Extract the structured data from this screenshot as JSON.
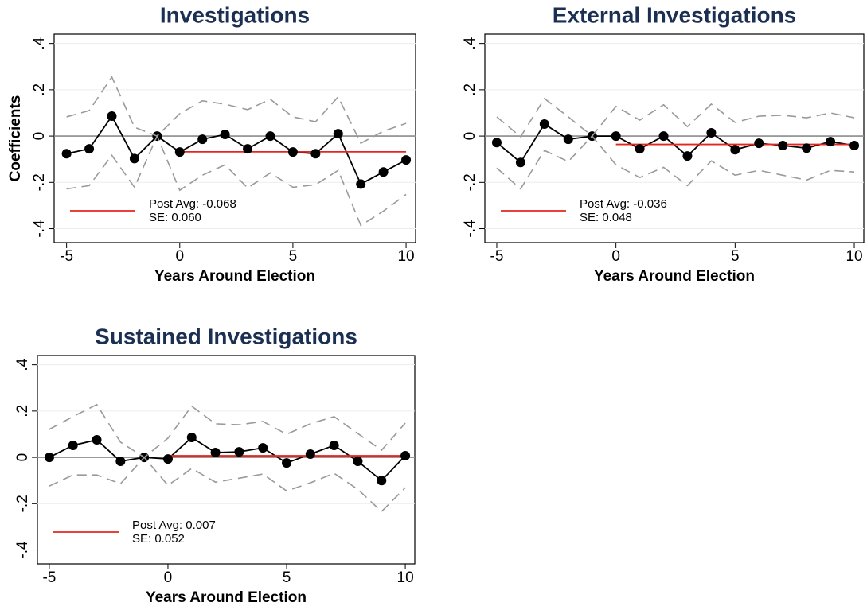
{
  "chart_data": [
    {
      "type": "line",
      "title": "Investigations",
      "ylabel": "Coefficients",
      "xlabel": "Years Around Election",
      "x": [
        -5,
        -4,
        -3,
        -2,
        -1,
        0,
        1,
        2,
        3,
        4,
        5,
        6,
        7,
        8,
        9,
        10
      ],
      "series": [
        {
          "color": "#000000",
          "marker": true,
          "dashed": false,
          "values": [
            -0.076,
            -0.055,
            0.086,
            -0.097,
            0,
            -0.069,
            -0.014,
            0.007,
            -0.055,
            0,
            -0.069,
            -0.076,
            0.01,
            -0.207,
            -0.155,
            -0.103
          ]
        },
        {
          "color": "#9a9a9a",
          "marker": false,
          "dashed": true,
          "values": [
            0.083,
            0.11,
            0.255,
            0.038,
            0,
            0.097,
            0.152,
            0.138,
            0.114,
            0.159,
            0.083,
            0.062,
            0.169,
            -0.031,
            0.021,
            0.055
          ]
        },
        {
          "color": "#9a9a9a",
          "marker": false,
          "dashed": true,
          "values": [
            -0.228,
            -0.214,
            -0.083,
            -0.221,
            0,
            -0.234,
            -0.169,
            -0.124,
            -0.224,
            -0.159,
            -0.221,
            -0.21,
            -0.148,
            -0.386,
            -0.324,
            -0.252
          ]
        }
      ],
      "post_avg": {
        "value": -0.068,
        "xrange": [
          0,
          10
        ],
        "color": "#e3261e",
        "label": "Post Avg: -0.068",
        "se_label": "SE:  0.060"
      },
      "hline": 0,
      "grid": true,
      "xlim": [
        -5.55,
        10.42
      ],
      "xticks": [
        -5,
        0,
        5,
        10
      ],
      "ylim": [
        -0.46,
        0.44
      ],
      "yticks": [
        {
          "value": -0.4,
          "label": "-.4"
        },
        {
          "value": -0.2,
          "label": "-.2"
        },
        0,
        {
          "value": 0.2,
          "label": ".2"
        },
        {
          "value": 0.4,
          "label": ".4"
        }
      ]
    },
    {
      "type": "line",
      "title": "External Investigations",
      "xlabel": "Years Around Election",
      "x": [
        -5,
        -4,
        -3,
        -2,
        -1,
        0,
        1,
        2,
        3,
        4,
        5,
        6,
        7,
        8,
        9,
        10
      ],
      "series": [
        {
          "color": "#000000",
          "marker": true,
          "dashed": false,
          "values": [
            -0.028,
            -0.114,
            0.052,
            -0.014,
            0,
            0,
            -0.055,
            0,
            -0.086,
            0.014,
            -0.059,
            -0.031,
            -0.041,
            -0.052,
            -0.024,
            -0.041
          ]
        },
        {
          "color": "#9a9a9a",
          "marker": false,
          "dashed": true,
          "values": [
            0.083,
            -0.003,
            0.162,
            0.083,
            0,
            0.128,
            0.069,
            0.135,
            0.041,
            0.138,
            0.059,
            0.086,
            0.09,
            0.079,
            0.1,
            0.079
          ]
        },
        {
          "color": "#9a9a9a",
          "marker": false,
          "dashed": true,
          "values": [
            -0.138,
            -0.228,
            -0.062,
            -0.11,
            0,
            -0.124,
            -0.179,
            -0.135,
            -0.214,
            -0.107,
            -0.169,
            -0.148,
            -0.169,
            -0.19,
            -0.148,
            -0.155
          ]
        }
      ],
      "post_avg": {
        "value": -0.036,
        "xrange": [
          0,
          10
        ],
        "color": "#e3261e",
        "label": "Post Avg: -0.036",
        "se_label": "SE:  0.048"
      },
      "hline": 0,
      "grid": true,
      "xlim": [
        -5.5,
        10.4
      ],
      "xticks": [
        -5,
        0,
        5,
        10
      ],
      "ylim": [
        -0.46,
        0.44
      ],
      "yticks": [
        {
          "value": -0.4,
          "label": "-.4"
        },
        {
          "value": -0.2,
          "label": "-.2"
        },
        0,
        {
          "value": 0.2,
          "label": ".2"
        },
        {
          "value": 0.4,
          "label": ".4"
        }
      ]
    },
    {
      "type": "line",
      "title": "Sustained Investigations",
      "xlabel": "Years Around Election",
      "x": [
        -5,
        -4,
        -3,
        -2,
        -1,
        0,
        1,
        2,
        3,
        4,
        5,
        6,
        7,
        8,
        9,
        10
      ],
      "series": [
        {
          "color": "#000000",
          "marker": true,
          "dashed": false,
          "values": [
            0,
            0.052,
            0.076,
            -0.017,
            0,
            -0.007,
            0.086,
            0.021,
            0.024,
            0.041,
            -0.024,
            0.014,
            0.052,
            -0.017,
            -0.1,
            0.007
          ]
        },
        {
          "color": "#9a9a9a",
          "marker": false,
          "dashed": true,
          "values": [
            0.121,
            0.176,
            0.228,
            0.066,
            0,
            0.083,
            0.221,
            0.145,
            0.141,
            0.155,
            0.1,
            0.145,
            0.176,
            0.103,
            0.031,
            0.148
          ]
        },
        {
          "color": "#9a9a9a",
          "marker": false,
          "dashed": true,
          "values": [
            -0.124,
            -0.076,
            -0.076,
            -0.114,
            0,
            -0.121,
            -0.048,
            -0.107,
            -0.09,
            -0.072,
            -0.145,
            -0.11,
            -0.069,
            -0.138,
            -0.234,
            -0.131
          ]
        }
      ],
      "post_avg": {
        "value": 0.007,
        "xrange": [
          0,
          10
        ],
        "color": "#e3261e",
        "label": "Post Avg:  0.007",
        "se_label": "SE:  0.052"
      },
      "hline": 0,
      "grid": true,
      "xlim": [
        -5.5,
        10.4
      ],
      "xticks": [
        -5,
        0,
        5,
        10
      ],
      "ylim": [
        -0.46,
        0.44
      ],
      "yticks": [
        {
          "value": -0.4,
          "label": "-.4"
        },
        {
          "value": -0.2,
          "label": "-.2"
        },
        0,
        {
          "value": 0.2,
          "label": ".2"
        },
        {
          "value": 0.4,
          "label": ".4"
        }
      ]
    }
  ]
}
